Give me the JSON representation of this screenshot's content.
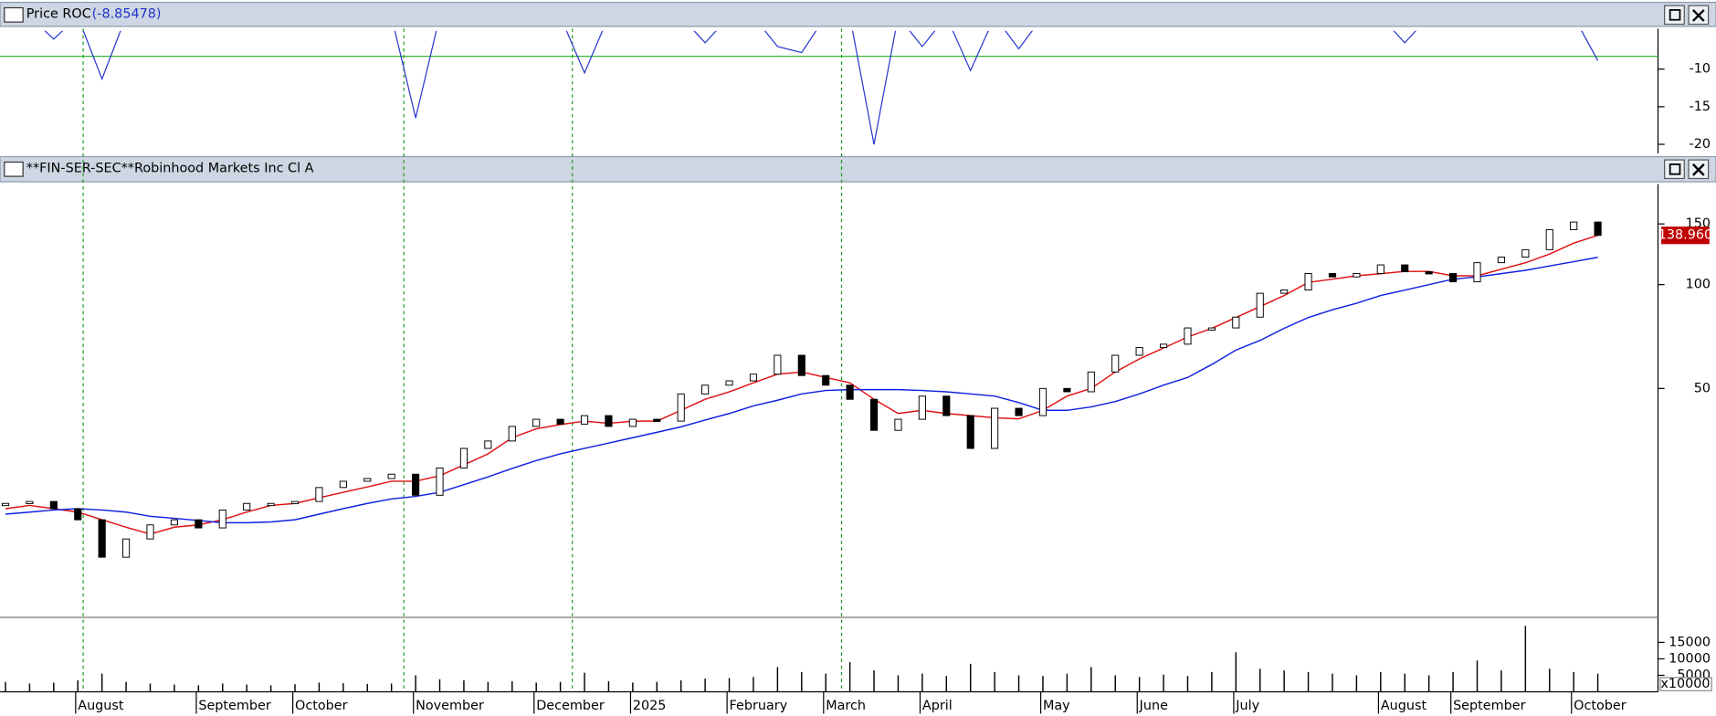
{
  "chart_data": [
    {
      "type": "roc",
      "title": "Price ROC",
      "value_label": "(-8.85478)",
      "values": [
        -3,
        -3,
        -6,
        -3,
        -11.3,
        -3,
        -3,
        -3,
        -3,
        -3,
        -3,
        -3,
        -3,
        -3,
        -3,
        -3,
        -3,
        -16.5,
        -3,
        -3,
        -3,
        -3,
        -3,
        -3,
        -10.5,
        -3,
        -3,
        -3,
        -3,
        -6.5,
        -3,
        -3,
        -7,
        -7.8,
        -3,
        -3,
        -20,
        -3,
        -7,
        -3,
        -10.2,
        -3,
        -7.3,
        -3,
        -3,
        -3,
        -3,
        -3,
        -3,
        -3,
        -3,
        -3,
        -3,
        -3,
        -3,
        -3,
        -3,
        -3,
        -6.5,
        -3,
        -3,
        -3,
        -3,
        -3,
        -3,
        -3,
        -8.85478
      ],
      "color": "#2233cc",
      "reference_line": -8.3,
      "reference_color": "#22aa22",
      "ylim": [
        -21.2,
        -4.9
      ],
      "yticks": [
        -10,
        -15,
        -20
      ]
    },
    {
      "type": "price",
      "title": "**FIN-SER-SEC**Robinhood Markets Inc Cl A",
      "log_scale": true,
      "values": [
        23.2,
        23.5,
        22.4,
        20.8,
        16.2,
        18.3,
        20.1,
        20.8,
        19.7,
        22.2,
        23.2,
        23.2,
        23.5,
        25.8,
        26.9,
        27.4,
        28.2,
        24.5,
        29.4,
        33.5,
        35.2,
        38.8,
        40.7,
        39.4,
        41.7,
        38.8,
        40.7,
        40.2,
        48.2,
        51.1,
        52.6,
        55,
        62.4,
        54.5,
        51.1,
        46.5,
        37.8,
        40.7,
        47.5,
        41.7,
        33.5,
        43.8,
        41.7,
        50,
        48.9,
        55.8,
        62.4,
        65.7,
        67.2,
        74.9,
        74.9,
        80.5,
        94.4,
        96.5,
        107.7,
        105.3,
        107.7,
        114.1,
        109,
        107.7,
        101.9,
        115.8,
        120.2,
        126.3,
        144.4,
        151.9,
        138.96
      ],
      "last_label": "138.960",
      "series": [
        {
          "color": "#e01010",
          "values": [
            22.4,
            22.9,
            22.4,
            21.9,
            20.8,
            19.8,
            18.9,
            19.8,
            20.1,
            20.8,
            21.9,
            22.9,
            23.2,
            24.1,
            25,
            25.9,
            26.9,
            26.9,
            27.9,
            30,
            32.3,
            36,
            38.2,
            39.3,
            40.2,
            39.6,
            40.2,
            40.2,
            43.2,
            46.5,
            48.9,
            51.9,
            55,
            55.8,
            53.8,
            51.9,
            46.5,
            42.3,
            43.2,
            42.3,
            41.7,
            41.1,
            40.8,
            43.2,
            47.5,
            50,
            55.8,
            60.9,
            65.5,
            70.5,
            74.7,
            80.3,
            86.4,
            93,
            101.5,
            103.7,
            106.1,
            107.6,
            109.2,
            109.2,
            106.1,
            106.1,
            110.8,
            115.7,
            122.7,
            132,
            139
          ]
        },
        {
          "color": "#1020e0",
          "values": [
            21.6,
            21.9,
            22.2,
            22.4,
            22.2,
            21.9,
            21.3,
            21.0,
            20.7,
            20.4,
            20.4,
            20.5,
            20.8,
            21.6,
            22.4,
            23.2,
            23.9,
            24.3,
            25,
            26.3,
            27.7,
            29.3,
            30.9,
            32.3,
            33.5,
            34.7,
            36,
            37.3,
            38.7,
            40.5,
            42.3,
            44.5,
            46.2,
            48.2,
            49.3,
            49.6,
            49.6,
            49.6,
            49.3,
            48.9,
            48.2,
            47.5,
            45.5,
            43.2,
            43.2,
            44.2,
            45.8,
            48.2,
            51.1,
            53.8,
            58.7,
            64.6,
            68.9,
            74.7,
            80.3,
            84.6,
            88.3,
            93,
            96.4,
            100,
            103.7,
            105.3,
            107.6,
            110,
            113.3,
            116.6,
            120
          ]
        }
      ],
      "ylim": [
        11,
        193
      ],
      "yticks": [
        50,
        100,
        150
      ]
    },
    {
      "type": "bar",
      "unit_label": "x10000",
      "categories": [
        null,
        null,
        null,
        "August",
        null,
        null,
        null,
        null,
        "September",
        null,
        null,
        null,
        "October",
        null,
        null,
        null,
        null,
        "November",
        null,
        null,
        null,
        null,
        "December",
        null,
        null,
        null,
        "2025",
        null,
        null,
        null,
        "February",
        null,
        null,
        null,
        "March",
        null,
        null,
        null,
        "April",
        null,
        null,
        null,
        null,
        "May",
        null,
        null,
        null,
        "June",
        null,
        null,
        null,
        "July",
        null,
        null,
        null,
        null,
        null,
        "August",
        null,
        null,
        "September",
        null,
        null,
        null,
        null,
        "October",
        null
      ],
      "values": [
        3000,
        2500,
        2800,
        3500,
        5500,
        3000,
        2500,
        2200,
        2000,
        2500,
        2200,
        2000,
        2300,
        2800,
        2600,
        2400,
        2500,
        5000,
        3800,
        3500,
        3000,
        3200,
        2800,
        3000,
        5800,
        3200,
        2800,
        3000,
        3500,
        4000,
        4200,
        4500,
        7500,
        6000,
        5500,
        9000,
        6500,
        5000,
        5500,
        4800,
        8500,
        6000,
        5000,
        4800,
        5500,
        7500,
        5000,
        4500,
        5200,
        4800,
        6000,
        12000,
        7000,
        6500,
        6000,
        5500,
        5000,
        6000,
        5500,
        5000,
        6000,
        9500,
        6500,
        20000,
        7000,
        6000,
        5500
      ],
      "color": "#000000",
      "ylim": [
        0,
        21600
      ],
      "yticks": [
        5000,
        10000,
        15000
      ]
    }
  ]
}
